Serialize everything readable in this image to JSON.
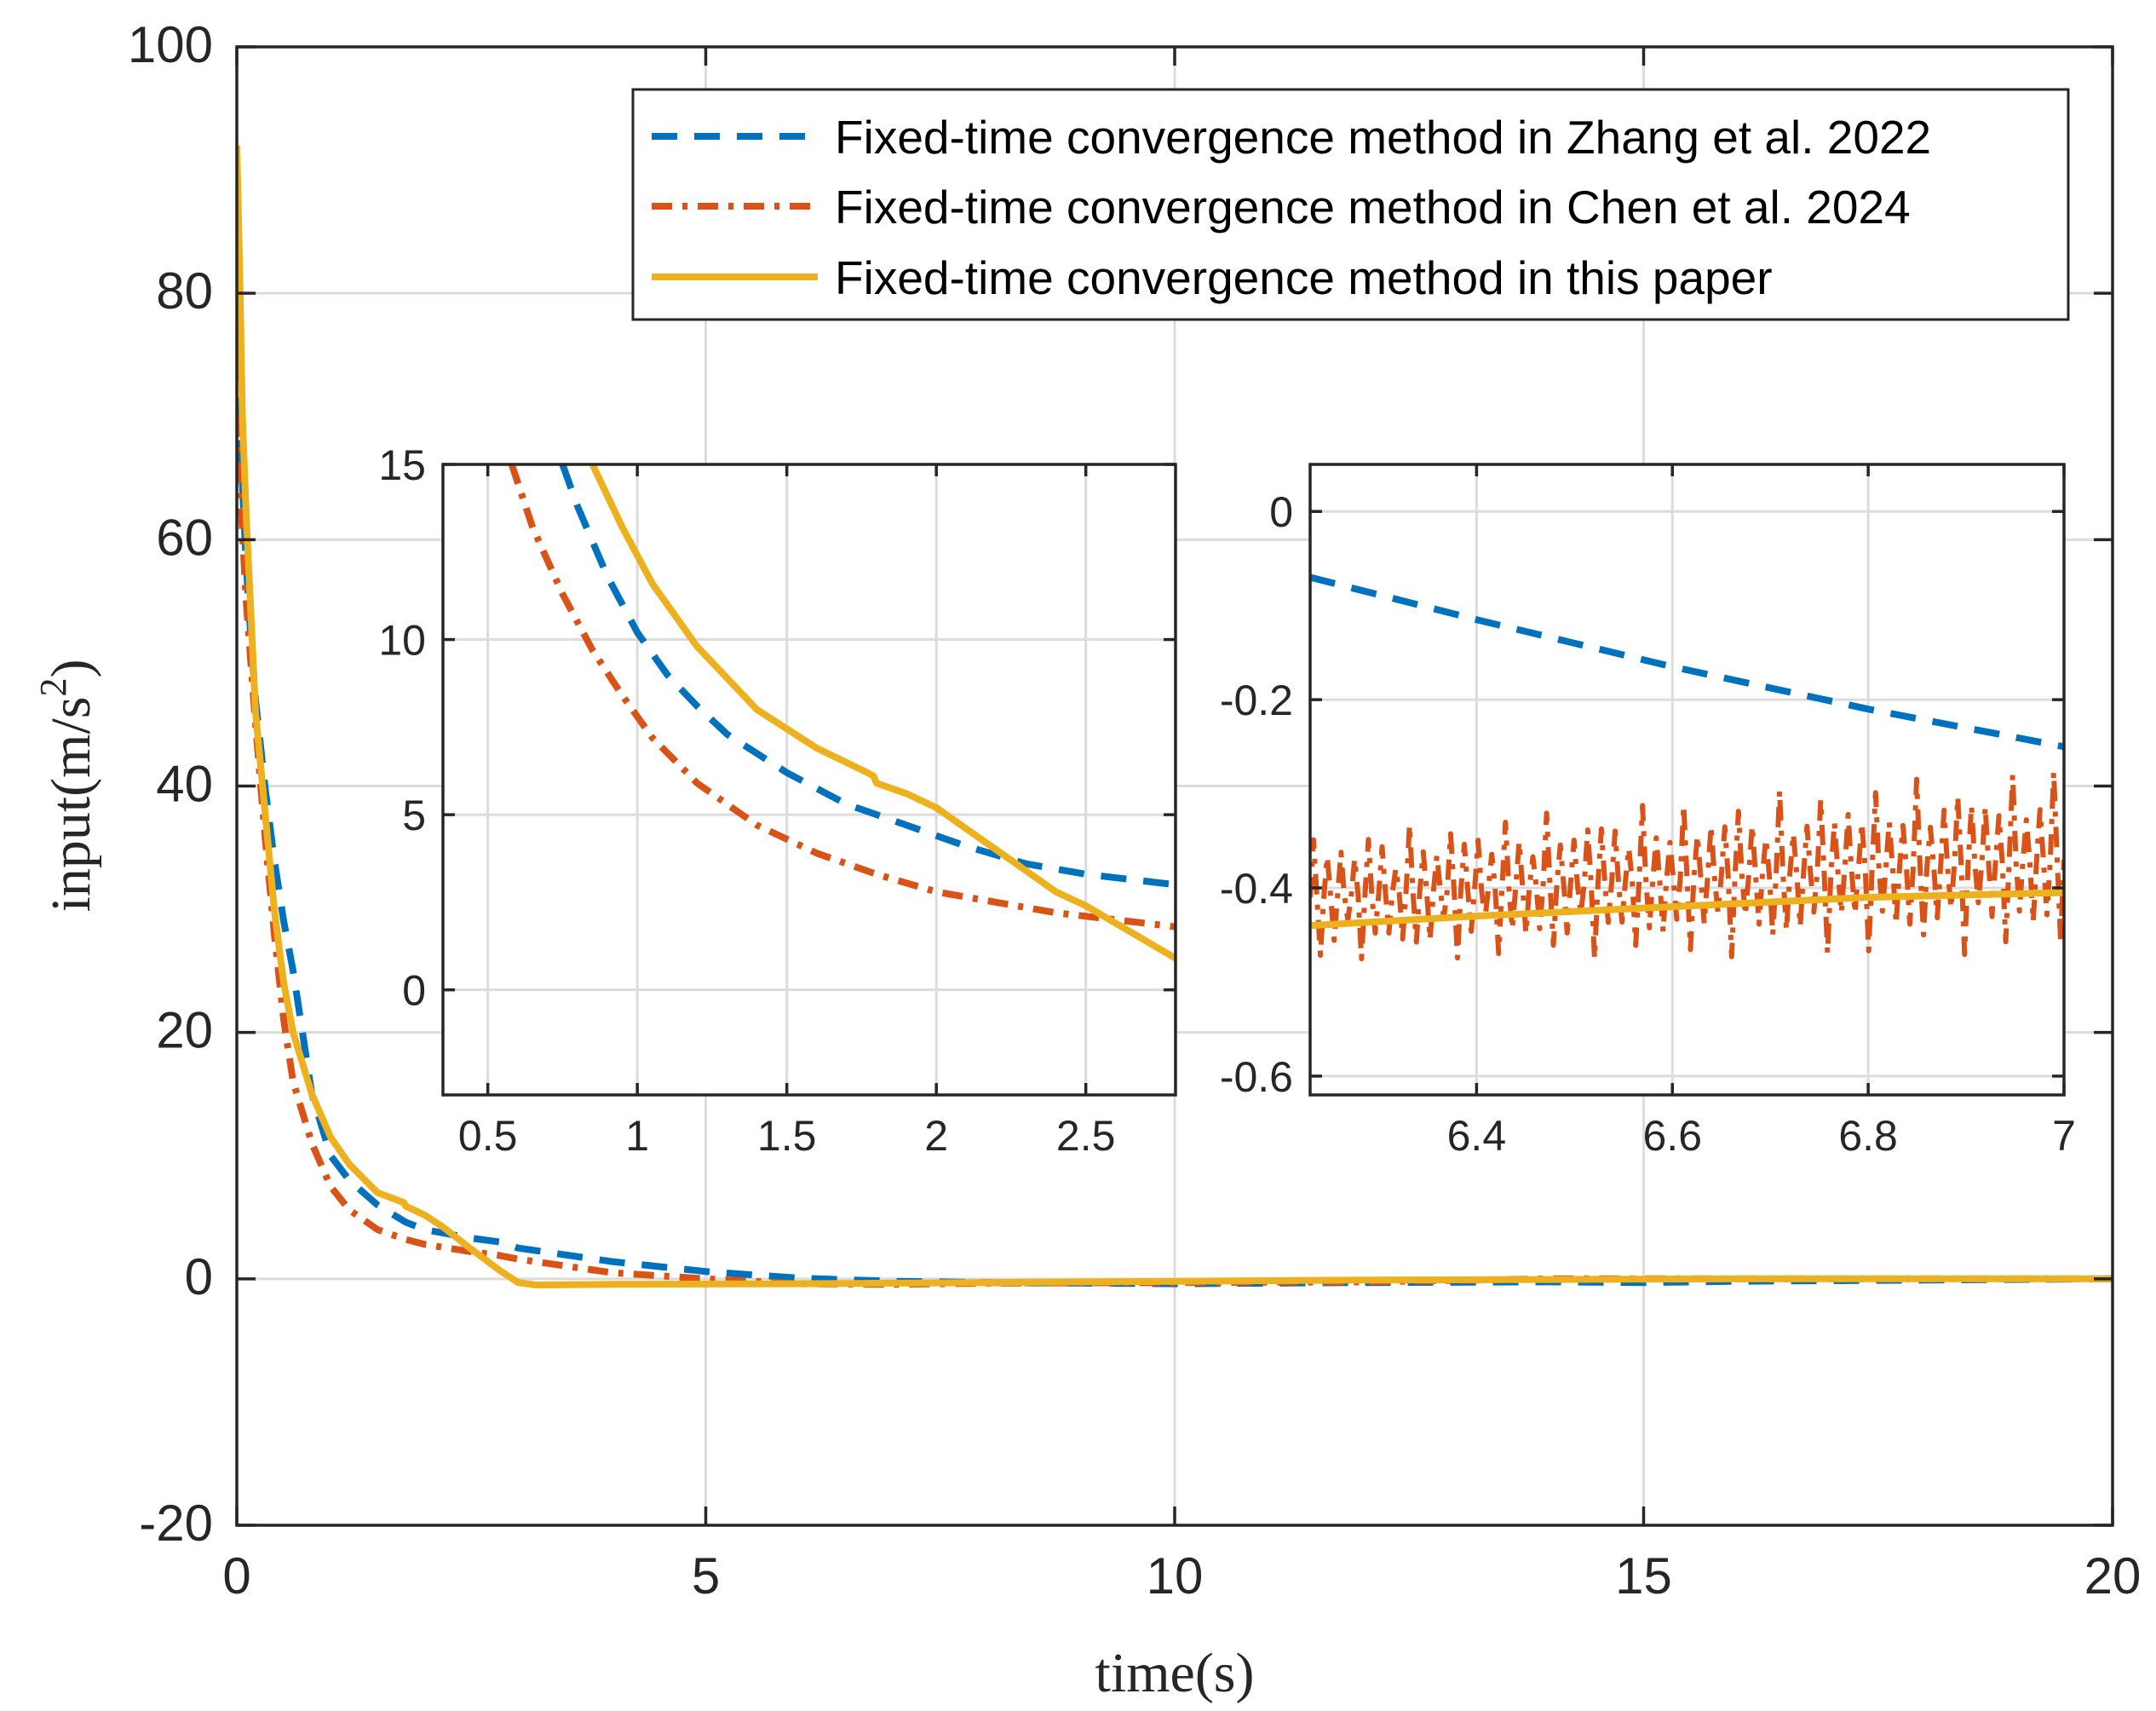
{
  "chart_data": {
    "type": "line",
    "title": "",
    "xlabel": "time(s)",
    "ylabel": "input(m/s",
    "ylabel_unit_exponent": "2",
    "ylabel_close": ")",
    "xlim": [
      0,
      20
    ],
    "ylim": [
      -20,
      100
    ],
    "xticks": [
      "0",
      "5",
      "10",
      "15",
      "20"
    ],
    "yticks": [
      "-20",
      "0",
      "20",
      "40",
      "60",
      "80",
      "100"
    ],
    "grid": true,
    "legend_position": "top-right",
    "series": [
      {
        "name": "Fixed-time convergence method in Zhang et al. 2022",
        "color": "#0072BD",
        "style": "dashed",
        "x": [
          0,
          0.05,
          0.1,
          0.15,
          0.2,
          0.3,
          0.4,
          0.5,
          0.6,
          0.7,
          0.8,
          1.0,
          1.2,
          1.5,
          1.8,
          2.0,
          2.5,
          2.8,
          3,
          4,
          5,
          6,
          7,
          8,
          10,
          12,
          14,
          15,
          16,
          18,
          20
        ],
        "y": [
          75,
          66,
          58,
          52,
          47,
          40,
          34,
          29,
          25,
          20,
          15,
          10,
          8,
          6,
          4.6,
          4.0,
          3.3,
          3.0,
          2.5,
          1.4,
          0.6,
          0.05,
          -0.2,
          -0.3,
          -0.4,
          -0.3,
          -0.25,
          -0.3,
          -0.2,
          -0.1,
          0
        ]
      },
      {
        "name": "Fixed-time convergence method in Chen et al. 2024",
        "color": "#D95319",
        "style": "dashdot",
        "x": [
          0,
          0.05,
          0.1,
          0.2,
          0.3,
          0.4,
          0.5,
          0.6,
          0.7,
          0.8,
          1.0,
          1.2,
          1.5,
          1.8,
          2.0,
          2.5,
          2.8,
          3,
          4,
          5,
          6,
          7,
          8,
          10,
          12,
          14,
          16,
          18,
          20
        ],
        "y": [
          70,
          62,
          55,
          45,
          36,
          28,
          21,
          16,
          13.5,
          11,
          7.5,
          5.6,
          4.0,
          3.2,
          2.8,
          2.2,
          1.9,
          1.6,
          0.5,
          0,
          -0.4,
          -0.45,
          -0.35,
          -0.3,
          -0.25,
          0,
          0,
          0,
          0
        ]
      },
      {
        "name": "Fixed-time convergence method in this paper",
        "color": "#EDB120",
        "style": "solid",
        "x": [
          0,
          0.03,
          0.06,
          0.1,
          0.15,
          0.2,
          0.3,
          0.4,
          0.45,
          0.5,
          0.6,
          0.8,
          1.0,
          1.2,
          1.5,
          1.78,
          1.8,
          2.0,
          2.2,
          2.5,
          2.8,
          3.0,
          3.2,
          4,
          5,
          6,
          7,
          8,
          10,
          12,
          14,
          16,
          18,
          20
        ],
        "y": [
          92,
          82,
          70,
          62,
          54,
          46,
          38,
          30,
          27,
          24,
          20,
          15,
          11.5,
          9.3,
          7.0,
          6.2,
          5.9,
          5.2,
          4.2,
          2.4,
          0.7,
          -0.3,
          -0.5,
          -0.45,
          -0.42,
          -0.4,
          -0.35,
          -0.3,
          -0.2,
          -0.1,
          -0.05,
          0,
          0,
          0
        ]
      }
    ],
    "insets": [
      {
        "xlim": [
          0.35,
          2.8
        ],
        "ylim": [
          -3,
          15
        ],
        "xticks": [
          "0.5",
          "1",
          "1.5",
          "2",
          "2.5"
        ],
        "yticks": [
          "0",
          "5",
          "10",
          "15"
        ],
        "series": [
          {
            "name": "Fixed-time convergence method in Zhang et al. 2022",
            "x": [
              0.75,
              0.8,
              0.9,
              1.0,
              1.1,
              1.2,
              1.3,
              1.5,
              1.7,
              1.9,
              2.1,
              2.3,
              2.5,
              2.8
            ],
            "y": [
              15,
              13.8,
              11.8,
              10.2,
              9.0,
              8.1,
              7.3,
              6.2,
              5.3,
              4.7,
              4.1,
              3.6,
              3.3,
              3.0
            ]
          },
          {
            "name": "Fixed-time convergence method in Chen et al. 2024",
            "x": [
              0.58,
              0.65,
              0.75,
              0.85,
              0.95,
              1.05,
              1.2,
              1.4,
              1.6,
              1.8,
              2.0,
              2.2,
              2.4,
              2.6,
              2.8
            ],
            "y": [
              15,
              13.2,
              11.3,
              9.7,
              8.4,
              7.2,
              5.9,
              4.7,
              3.9,
              3.3,
              2.8,
              2.5,
              2.2,
              2.0,
              1.8
            ]
          },
          {
            "name": "Fixed-time convergence method in this paper",
            "x": [
              0.85,
              0.95,
              1.05,
              1.2,
              1.4,
              1.6,
              1.77,
              1.79,
              1.8,
              1.9,
              2.0,
              2.1,
              2.2,
              2.3,
              2.4,
              2.5,
              2.6,
              2.7,
              2.8
            ],
            "y": [
              15,
              13.2,
              11.6,
              9.8,
              8.0,
              6.9,
              6.2,
              6.1,
              5.9,
              5.6,
              5.2,
              4.6,
              4.0,
              3.4,
              2.8,
              2.4,
              1.9,
              1.4,
              0.9
            ]
          }
        ]
      },
      {
        "xlim": [
          6.23,
          7.0
        ],
        "ylim": [
          -0.62,
          0.05
        ],
        "xticks": [
          "6.4",
          "6.6",
          "6.8",
          "7"
        ],
        "yticks": [
          "-0.6",
          "-0.4",
          "-0.2",
          "0"
        ],
        "series": [
          {
            "name": "Fixed-time convergence method in Zhang et al. 2022",
            "x": [
              6.23,
              6.4,
              6.6,
              6.8,
              7.0
            ],
            "y": [
              -0.07,
              -0.115,
              -0.165,
              -0.21,
              -0.25
            ]
          },
          {
            "name": "Fixed-time convergence method in Chen et al. 2024",
            "oscillating": true,
            "x_start": 6.23,
            "x_end": 7.0,
            "center_start": -0.41,
            "center_end": -0.37,
            "amplitude_start": 0.07,
            "amplitude_end": 0.1,
            "period": 0.014
          },
          {
            "name": "Fixed-time convergence method in this paper",
            "x": [
              6.23,
              6.4,
              6.6,
              6.8,
              7.0
            ],
            "y": [
              -0.44,
              -0.43,
              -0.42,
              -0.41,
              -0.405
            ]
          }
        ]
      }
    ]
  }
}
